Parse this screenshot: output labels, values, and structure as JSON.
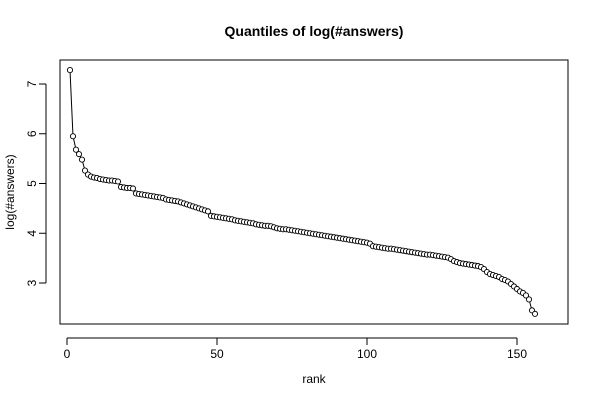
{
  "chart_data": {
    "type": "line",
    "title": "Quantiles of log(#answers)",
    "xlabel": "rank",
    "ylabel": "log(#answers)",
    "xlim": [
      0,
      160
    ],
    "ylim": [
      2.2,
      7.5
    ],
    "xticks": [
      0,
      50,
      100,
      150
    ],
    "yticks": [
      3,
      4,
      5,
      6,
      7
    ],
    "grid": false,
    "marker": "open-circle",
    "series": [
      {
        "values": [
          [
            1,
            7.28
          ],
          [
            2,
            5.95
          ],
          [
            3,
            5.68
          ],
          [
            4,
            5.59
          ],
          [
            5,
            5.48
          ],
          [
            6,
            5.26
          ],
          [
            7,
            5.18
          ],
          [
            8,
            5.14
          ],
          [
            9,
            5.12
          ],
          [
            10,
            5.11
          ],
          [
            11,
            5.09
          ],
          [
            12,
            5.08
          ],
          [
            13,
            5.07
          ],
          [
            14,
            5.06
          ],
          [
            15,
            5.06
          ],
          [
            16,
            5.05
          ],
          [
            17,
            5.04
          ],
          [
            18,
            4.93
          ],
          [
            19,
            4.92
          ],
          [
            20,
            4.91
          ],
          [
            21,
            4.91
          ],
          [
            22,
            4.9
          ],
          [
            23,
            4.8
          ],
          [
            24,
            4.79
          ],
          [
            25,
            4.78
          ],
          [
            26,
            4.77
          ],
          [
            27,
            4.76
          ],
          [
            28,
            4.75
          ],
          [
            29,
            4.74
          ],
          [
            30,
            4.73
          ],
          [
            31,
            4.72
          ],
          [
            32,
            4.71
          ],
          [
            33,
            4.68
          ],
          [
            34,
            4.67
          ],
          [
            35,
            4.66
          ],
          [
            36,
            4.65
          ],
          [
            37,
            4.64
          ],
          [
            38,
            4.62
          ],
          [
            39,
            4.6
          ],
          [
            40,
            4.58
          ],
          [
            41,
            4.56
          ],
          [
            42,
            4.54
          ],
          [
            43,
            4.52
          ],
          [
            44,
            4.5
          ],
          [
            45,
            4.48
          ],
          [
            46,
            4.46
          ],
          [
            47,
            4.44
          ],
          [
            48,
            4.35
          ],
          [
            49,
            4.34
          ],
          [
            50,
            4.33
          ],
          [
            51,
            4.32
          ],
          [
            52,
            4.31
          ],
          [
            53,
            4.3
          ],
          [
            54,
            4.29
          ],
          [
            55,
            4.28
          ],
          [
            56,
            4.26
          ],
          [
            57,
            4.25
          ],
          [
            58,
            4.24
          ],
          [
            59,
            4.23
          ],
          [
            60,
            4.22
          ],
          [
            61,
            4.21
          ],
          [
            62,
            4.2
          ],
          [
            63,
            4.18
          ],
          [
            64,
            4.17
          ],
          [
            65,
            4.16
          ],
          [
            66,
            4.15
          ],
          [
            67,
            4.15
          ],
          [
            68,
            4.14
          ],
          [
            69,
            4.12
          ],
          [
            70,
            4.1
          ],
          [
            71,
            4.09
          ],
          [
            72,
            4.08
          ],
          [
            73,
            4.08
          ],
          [
            74,
            4.07
          ],
          [
            75,
            4.06
          ],
          [
            76,
            4.05
          ],
          [
            77,
            4.04
          ],
          [
            78,
            4.03
          ],
          [
            79,
            4.02
          ],
          [
            80,
            4.01
          ],
          [
            81,
            4.0
          ],
          [
            82,
            3.99
          ],
          [
            83,
            3.98
          ],
          [
            84,
            3.97
          ],
          [
            85,
            3.96
          ],
          [
            86,
            3.95
          ],
          [
            87,
            3.94
          ],
          [
            88,
            3.93
          ],
          [
            89,
            3.92
          ],
          [
            90,
            3.91
          ],
          [
            91,
            3.9
          ],
          [
            92,
            3.89
          ],
          [
            93,
            3.88
          ],
          [
            94,
            3.87
          ],
          [
            95,
            3.86
          ],
          [
            96,
            3.85
          ],
          [
            97,
            3.84
          ],
          [
            98,
            3.83
          ],
          [
            99,
            3.82
          ],
          [
            100,
            3.81
          ],
          [
            101,
            3.79
          ],
          [
            102,
            3.74
          ],
          [
            103,
            3.73
          ],
          [
            104,
            3.72
          ],
          [
            105,
            3.71
          ],
          [
            106,
            3.7
          ],
          [
            107,
            3.69
          ],
          [
            108,
            3.69
          ],
          [
            109,
            3.68
          ],
          [
            110,
            3.67
          ],
          [
            111,
            3.66
          ],
          [
            112,
            3.65
          ],
          [
            113,
            3.64
          ],
          [
            114,
            3.63
          ],
          [
            115,
            3.62
          ],
          [
            116,
            3.61
          ],
          [
            117,
            3.6
          ],
          [
            118,
            3.59
          ],
          [
            119,
            3.58
          ],
          [
            120,
            3.57
          ],
          [
            121,
            3.57
          ],
          [
            122,
            3.56
          ],
          [
            123,
            3.55
          ],
          [
            124,
            3.54
          ],
          [
            125,
            3.53
          ],
          [
            126,
            3.52
          ],
          [
            127,
            3.51
          ],
          [
            128,
            3.48
          ],
          [
            129,
            3.44
          ],
          [
            130,
            3.42
          ],
          [
            131,
            3.4
          ],
          [
            132,
            3.39
          ],
          [
            133,
            3.38
          ],
          [
            134,
            3.37
          ],
          [
            135,
            3.36
          ],
          [
            136,
            3.35
          ],
          [
            137,
            3.34
          ],
          [
            138,
            3.32
          ],
          [
            139,
            3.28
          ],
          [
            140,
            3.22
          ],
          [
            141,
            3.18
          ],
          [
            142,
            3.16
          ],
          [
            143,
            3.14
          ],
          [
            144,
            3.12
          ],
          [
            145,
            3.08
          ],
          [
            146,
            3.06
          ],
          [
            147,
            3.03
          ],
          [
            148,
            2.98
          ],
          [
            149,
            2.93
          ],
          [
            150,
            2.88
          ],
          [
            151,
            2.83
          ],
          [
            152,
            2.8
          ],
          [
            153,
            2.75
          ],
          [
            154,
            2.67
          ],
          [
            155,
            2.45
          ],
          [
            156,
            2.38
          ]
        ]
      }
    ]
  }
}
